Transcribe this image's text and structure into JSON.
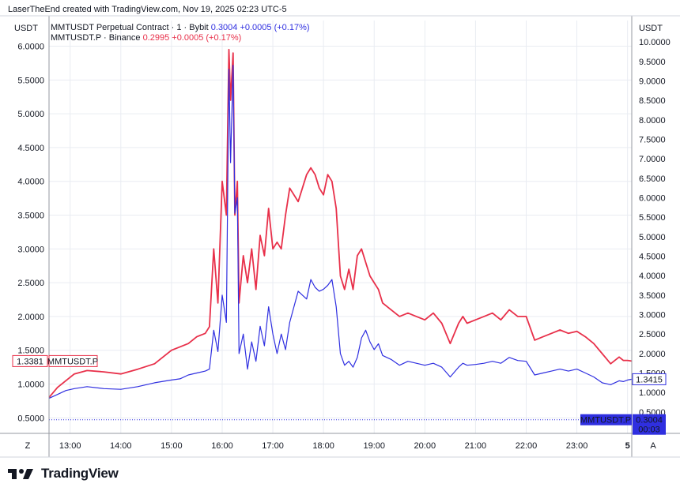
{
  "header": {
    "attribution": "LaserTheEnd created with TradingView.com, Nov 19, 2025 02:23 UTC-5"
  },
  "brand": {
    "name": "TradingView",
    "icon": "tradingview-logo-icon"
  },
  "colors": {
    "bybit": "#2f2fe0",
    "binance": "#e8304a",
    "grid": "#e9ecf2",
    "axis": "#9598a1",
    "text": "#131722"
  },
  "chart_data": {
    "type": "line",
    "left_axis": {
      "unit": "USDT",
      "ticks": [
        "6.0000",
        "5.5000",
        "5.0000",
        "4.5000",
        "4.0000",
        "3.5000",
        "3.0000",
        "2.5000",
        "2.0000",
        "1.5000",
        "1.0000",
        "0.5000"
      ],
      "ylim": [
        0.27,
        6.38
      ]
    },
    "right_axis": {
      "unit": "USDT",
      "ticks": [
        "10.0000",
        "9.5000",
        "9.0000",
        "8.5000",
        "8.0000",
        "7.5000",
        "7.0000",
        "6.5000",
        "6.0000",
        "5.5000",
        "5.0000",
        "4.5000",
        "4.0000",
        "3.5000",
        "3.0000",
        "2.5000",
        "2.0000",
        "1.5000",
        "1.0000",
        "0.5000"
      ],
      "ylim": [
        -0.05,
        10.55
      ]
    },
    "x_ticks": [
      "13:00",
      "14:00",
      "15:00",
      "16:00",
      "17:00",
      "18:00",
      "19:00",
      "20:00",
      "21:00",
      "22:00",
      "23:00",
      "5"
    ],
    "x_range": [
      "12:35",
      "00:05"
    ],
    "grid": true,
    "legend": [
      {
        "name": "MMTUSDT Perpetual Contract · 1 · Bybit",
        "last": "0.3004",
        "change": "+0.0005 (+0.17%)"
      },
      {
        "name": "MMTUSDT.P · Binance",
        "last": "0.2995",
        "change": "+0.0005 (+0.17%)"
      }
    ],
    "series": [
      {
        "name": "MMTUSDT Perpetual Contract · 1 · Bybit",
        "axis": "right",
        "x": [
          "12:35",
          "12:45",
          "12:55",
          "13:05",
          "13:20",
          "13:40",
          "14:00",
          "14:20",
          "14:40",
          "15:00",
          "15:10",
          "15:20",
          "15:30",
          "15:40",
          "15:45",
          "15:50",
          "15:55",
          "16:00",
          "16:05",
          "16:08",
          "16:10",
          "16:13",
          "16:15",
          "16:18",
          "16:20",
          "16:25",
          "16:30",
          "16:35",
          "16:40",
          "16:45",
          "16:50",
          "16:55",
          "17:00",
          "17:05",
          "17:10",
          "17:15",
          "17:20",
          "17:30",
          "17:40",
          "17:45",
          "17:50",
          "17:55",
          "18:00",
          "18:05",
          "18:10",
          "18:15",
          "18:20",
          "18:25",
          "18:30",
          "18:35",
          "18:40",
          "18:45",
          "18:50",
          "18:55",
          "19:00",
          "19:05",
          "19:10",
          "19:20",
          "19:30",
          "19:40",
          "19:50",
          "20:00",
          "20:10",
          "20:20",
          "20:30",
          "20:40",
          "20:45",
          "20:50",
          "21:00",
          "21:10",
          "21:20",
          "21:30",
          "21:40",
          "21:50",
          "22:00",
          "22:10",
          "22:20",
          "22:30",
          "22:40",
          "22:50",
          "23:00",
          "23:10",
          "23:20",
          "23:30",
          "23:40",
          "23:50",
          "23:55",
          "00:00",
          "00:05"
        ],
        "values": [
          0.85,
          0.95,
          1.05,
          1.1,
          1.15,
          1.1,
          1.08,
          1.15,
          1.25,
          1.32,
          1.35,
          1.45,
          1.5,
          1.55,
          1.6,
          2.6,
          2.05,
          3.5,
          2.8,
          9.3,
          6.9,
          9.4,
          5.6,
          6.0,
          2.0,
          2.5,
          1.6,
          2.3,
          1.8,
          2.7,
          2.2,
          3.2,
          2.5,
          2.0,
          2.5,
          2.1,
          2.8,
          3.6,
          3.4,
          3.9,
          3.7,
          3.6,
          3.65,
          3.75,
          3.9,
          3.2,
          2.0,
          1.7,
          1.8,
          1.65,
          1.9,
          2.4,
          2.6,
          2.3,
          2.1,
          2.25,
          1.95,
          1.85,
          1.7,
          1.8,
          1.75,
          1.7,
          1.75,
          1.65,
          1.4,
          1.65,
          1.75,
          1.7,
          1.72,
          1.75,
          1.8,
          1.75,
          1.9,
          1.82,
          1.8,
          1.45,
          1.5,
          1.55,
          1.6,
          1.55,
          1.6,
          1.5,
          1.4,
          1.25,
          1.2,
          1.3,
          1.28,
          1.32,
          1.34
        ]
      },
      {
        "name": "MMTUSDT.P · Binance",
        "axis": "left",
        "x": [
          "12:35",
          "12:45",
          "12:55",
          "13:05",
          "13:20",
          "13:40",
          "14:00",
          "14:20",
          "14:40",
          "15:00",
          "15:10",
          "15:20",
          "15:30",
          "15:40",
          "15:45",
          "15:50",
          "15:55",
          "16:00",
          "16:05",
          "16:08",
          "16:10",
          "16:13",
          "16:15",
          "16:18",
          "16:20",
          "16:25",
          "16:30",
          "16:35",
          "16:40",
          "16:45",
          "16:50",
          "16:55",
          "17:00",
          "17:05",
          "17:10",
          "17:15",
          "17:20",
          "17:30",
          "17:40",
          "17:45",
          "17:50",
          "17:55",
          "18:00",
          "18:05",
          "18:10",
          "18:15",
          "18:20",
          "18:25",
          "18:30",
          "18:35",
          "18:40",
          "18:45",
          "18:50",
          "18:55",
          "19:00",
          "19:05",
          "19:10",
          "19:20",
          "19:30",
          "19:40",
          "19:50",
          "20:00",
          "20:10",
          "20:20",
          "20:30",
          "20:40",
          "20:45",
          "20:50",
          "21:00",
          "21:10",
          "21:20",
          "21:30",
          "21:40",
          "21:50",
          "22:00",
          "22:10",
          "22:20",
          "22:30",
          "22:40",
          "22:50",
          "23:00",
          "23:10",
          "23:20",
          "23:30",
          "23:40",
          "23:50",
          "23:55",
          "00:00",
          "00:05"
        ],
        "values": [
          0.8,
          0.95,
          1.05,
          1.15,
          1.2,
          1.18,
          1.15,
          1.22,
          1.3,
          1.5,
          1.55,
          1.6,
          1.7,
          1.75,
          1.85,
          3.0,
          2.2,
          4.0,
          3.5,
          5.95,
          5.2,
          5.9,
          3.5,
          4.0,
          2.2,
          2.9,
          2.5,
          3.0,
          2.4,
          3.2,
          2.9,
          3.6,
          3.0,
          3.1,
          3.0,
          3.5,
          3.9,
          3.7,
          4.1,
          4.2,
          4.1,
          3.9,
          3.8,
          4.1,
          4.0,
          3.6,
          2.6,
          2.4,
          2.7,
          2.4,
          2.9,
          3.0,
          2.8,
          2.6,
          2.5,
          2.4,
          2.2,
          2.1,
          2.0,
          2.05,
          2.0,
          1.95,
          2.05,
          1.9,
          1.6,
          1.9,
          2.0,
          1.9,
          1.95,
          2.0,
          2.05,
          1.95,
          2.1,
          2.0,
          2.0,
          1.65,
          1.7,
          1.75,
          1.8,
          1.75,
          1.78,
          1.7,
          1.6,
          1.45,
          1.3,
          1.4,
          1.35,
          1.35,
          1.34
        ]
      }
    ],
    "price_labels": {
      "binance_left_value": "1.3381",
      "binance_left_label": "MMTUSDT.P",
      "bybit_right_value": "1.3415",
      "last_label": "MMTUSDT.P",
      "last_value": "0.3004",
      "countdown": "00:03",
      "reference_level": 0.3004
    },
    "corner_labels": {
      "left": "Z",
      "right": "A"
    }
  }
}
